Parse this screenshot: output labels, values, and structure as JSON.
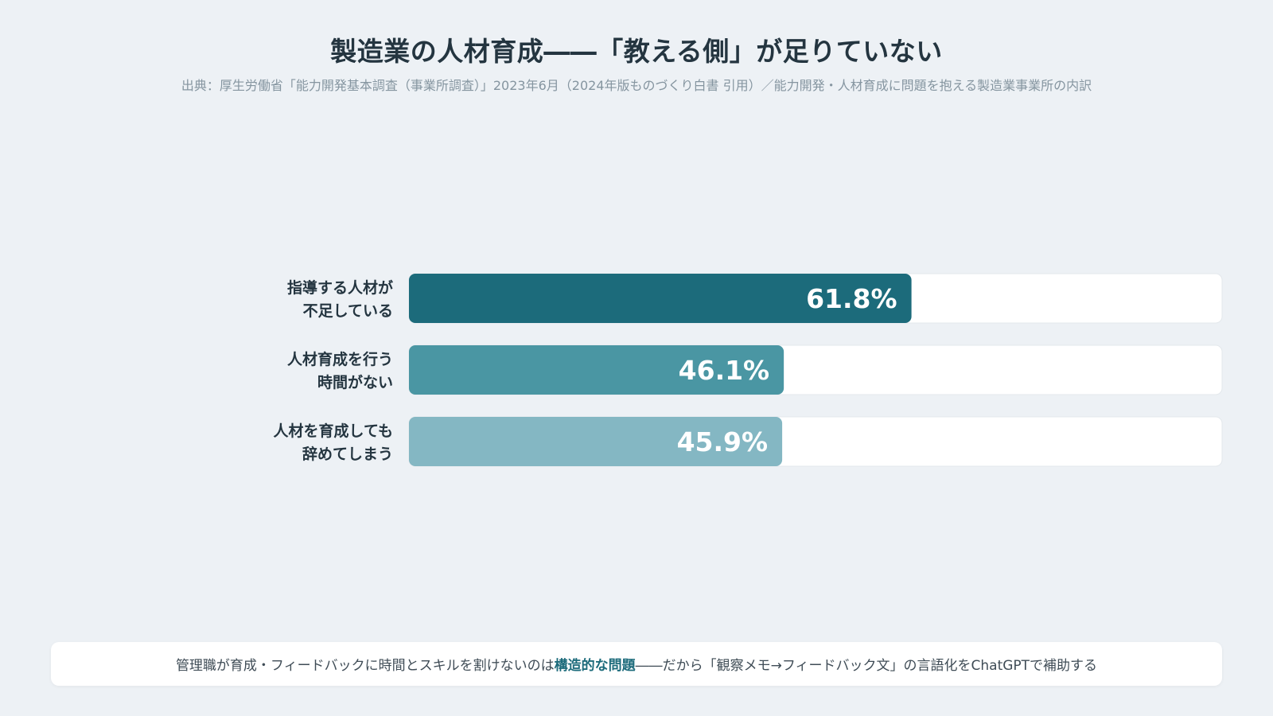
{
  "title": "製造業の人材育成――「教える側」が足りていない",
  "subtitle": "出典：厚生労働省「能力開発基本調査（事業所調査）」2023年6月（2024年版ものづくり白書 引用）／能力開発・人材育成に問題を抱える製造業事業所の内訳",
  "chart_data": {
    "type": "bar",
    "orientation": "horizontal",
    "categories": [
      [
        "指導する人材が",
        "不足している"
      ],
      [
        "人材育成を行う",
        "時間がない"
      ],
      [
        "人材を育成しても",
        "辞めてしまう"
      ]
    ],
    "values": [
      61.8,
      46.1,
      45.9
    ],
    "value_labels": [
      "61.8%",
      "46.1%",
      "45.9%"
    ],
    "xlim": [
      0,
      100
    ],
    "colors": [
      "#1c6b7b",
      "#4a96a3",
      "#84b7c3"
    ],
    "track_color": "#ffffff",
    "label_color": "#ffffff",
    "grid": false
  },
  "footer": {
    "before": "管理職が育成・フィードバックに時間とスキルを割けないのは",
    "highlight": "構造的な問題",
    "after": "――だから「観察メモ→フィードバック文」の言語化をChatGPTで補助する"
  }
}
